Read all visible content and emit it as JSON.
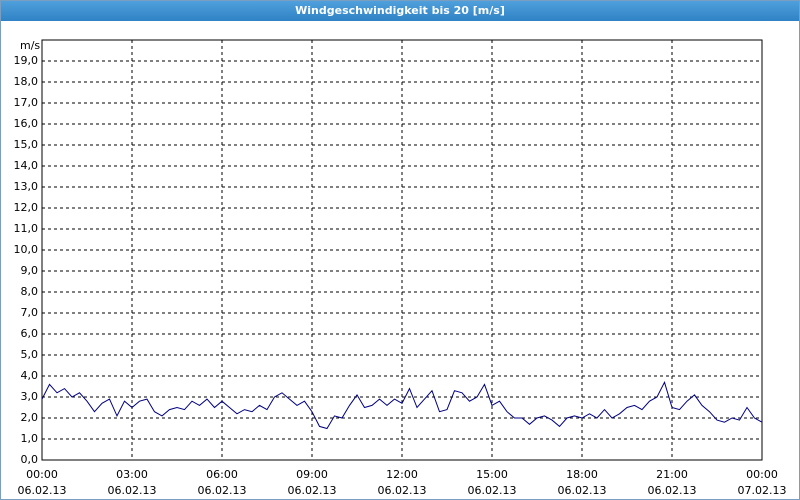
{
  "chart_data": {
    "type": "line",
    "title": "Windgeschwindigkeit bis 20 [m/s]",
    "y_label": "m/s",
    "color": "#000080",
    "grid": true,
    "x": [
      0,
      0.25,
      0.5,
      0.75,
      1,
      1.25,
      1.5,
      1.75,
      2,
      2.25,
      2.5,
      2.75,
      3,
      3.25,
      3.5,
      3.75,
      4,
      4.25,
      4.5,
      4.75,
      5,
      5.25,
      5.5,
      5.75,
      6,
      6.25,
      6.5,
      6.75,
      7,
      7.25,
      7.5,
      7.75,
      8,
      8.25,
      8.5,
      8.75,
      9,
      9.25,
      9.5,
      9.75,
      10,
      10.25,
      10.5,
      10.75,
      11,
      11.25,
      11.5,
      11.75,
      12,
      12.25,
      12.5,
      12.75,
      13,
      13.25,
      13.5,
      13.75,
      14,
      14.25,
      14.5,
      14.75,
      15,
      15.25,
      15.5,
      15.75,
      16,
      16.25,
      16.5,
      16.75,
      17,
      17.25,
      17.5,
      17.75,
      18,
      18.25,
      18.5,
      18.75,
      19,
      19.25,
      19.5,
      19.75,
      20,
      20.25,
      20.5,
      20.75,
      21,
      21.25,
      21.5,
      21.75,
      22,
      22.25,
      22.5,
      22.75,
      23,
      23.25,
      23.5,
      23.75,
      24
    ],
    "values": [
      2.9,
      3.6,
      3.2,
      3.4,
      3.0,
      3.2,
      2.8,
      2.3,
      2.7,
      2.9,
      2.1,
      2.8,
      2.5,
      2.8,
      2.9,
      2.3,
      2.1,
      2.4,
      2.5,
      2.4,
      2.8,
      2.6,
      2.9,
      2.5,
      2.8,
      2.5,
      2.2,
      2.4,
      2.3,
      2.6,
      2.4,
      3.0,
      3.2,
      2.9,
      2.6,
      2.8,
      2.3,
      1.6,
      1.5,
      2.1,
      2.0,
      2.6,
      3.1,
      2.5,
      2.6,
      2.9,
      2.6,
      2.9,
      2.7,
      3.4,
      2.5,
      2.9,
      3.3,
      2.3,
      2.4,
      3.3,
      3.2,
      2.8,
      3.0,
      3.6,
      2.6,
      2.8,
      2.3,
      2.0,
      2.0,
      1.7,
      2.0,
      2.1,
      1.9,
      1.6,
      2.0,
      2.1,
      2.0,
      2.2,
      2.0,
      2.4,
      2.0,
      2.2,
      2.5,
      2.6,
      2.4,
      2.8,
      3.0,
      3.7,
      2.5,
      2.4,
      2.8,
      3.1,
      2.6,
      2.3,
      1.9,
      1.8,
      2.0,
      1.9,
      2.5,
      2.0,
      1.8
    ],
    "xlim": [
      0,
      24
    ],
    "xticks": [
      {
        "value": 0,
        "label": "00:00"
      },
      {
        "value": 3,
        "label": "03:00"
      },
      {
        "value": 6,
        "label": "06:00"
      },
      {
        "value": 9,
        "label": "09:00"
      },
      {
        "value": 12,
        "label": "12:00"
      },
      {
        "value": 15,
        "label": "15:00"
      },
      {
        "value": 18,
        "label": "18:00"
      },
      {
        "value": 21,
        "label": "21:00"
      },
      {
        "value": 24,
        "label": "00:00"
      }
    ],
    "xtick_dates": [
      "06.02.13",
      "06.02.13",
      "06.02.13",
      "06.02.13",
      "06.02.13",
      "06.02.13",
      "06.02.13",
      "06.02.13",
      "07.02.13"
    ],
    "ylim": [
      0,
      20
    ],
    "yticks": [
      {
        "value": 0,
        "label": "0,0"
      },
      {
        "value": 1,
        "label": "1,0"
      },
      {
        "value": 2,
        "label": "2,0"
      },
      {
        "value": 3,
        "label": "3,0"
      },
      {
        "value": 4,
        "label": "4,0"
      },
      {
        "value": 5,
        "label": "5,0"
      },
      {
        "value": 6,
        "label": "6,0"
      },
      {
        "value": 7,
        "label": "7,0"
      },
      {
        "value": 8,
        "label": "8,0"
      },
      {
        "value": 9,
        "label": "9,0"
      },
      {
        "value": 10,
        "label": "10,0"
      },
      {
        "value": 11,
        "label": "11,0"
      },
      {
        "value": 12,
        "label": "12,0"
      },
      {
        "value": 13,
        "label": "13,0"
      },
      {
        "value": 14,
        "label": "14,0"
      },
      {
        "value": 15,
        "label": "15,0"
      },
      {
        "value": 16,
        "label": "16,0"
      },
      {
        "value": 17,
        "label": "17,0"
      },
      {
        "value": 18,
        "label": "18,0"
      },
      {
        "value": 19,
        "label": "19,0"
      }
    ]
  }
}
